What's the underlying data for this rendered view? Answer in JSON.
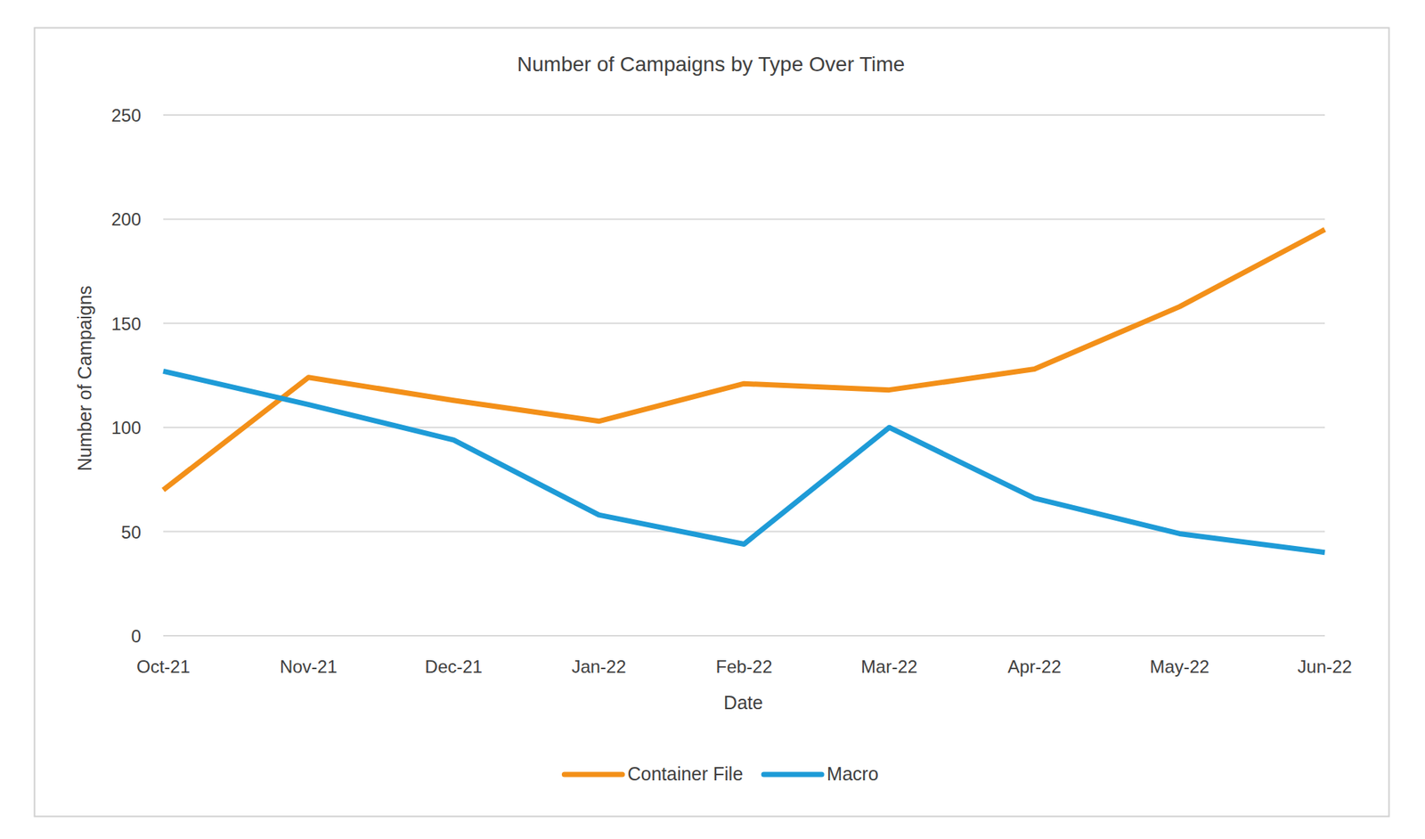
{
  "chart_data": {
    "type": "line",
    "title": "Number of Campaigns by Type Over Time",
    "x_label": "Date",
    "y_label": "Number of Campaigns",
    "categories": [
      "Oct-21",
      "Nov-21",
      "Dec-21",
      "Jan-22",
      "Feb-22",
      "Mar-22",
      "Apr-22",
      "May-22",
      "Jun-22"
    ],
    "series": [
      {
        "name": "Container File",
        "color": "#f39019",
        "values": [
          70,
          124,
          113,
          103,
          121,
          118,
          128,
          158,
          195
        ]
      },
      {
        "name": "Macro",
        "color": "#1e9bd7",
        "values": [
          127,
          111,
          94,
          58,
          44,
          100,
          66,
          49,
          40
        ]
      }
    ],
    "ylim": [
      0,
      250
    ],
    "yticks": [
      0,
      50,
      100,
      150,
      200,
      250
    ],
    "grid": true,
    "legend": "bottom"
  }
}
